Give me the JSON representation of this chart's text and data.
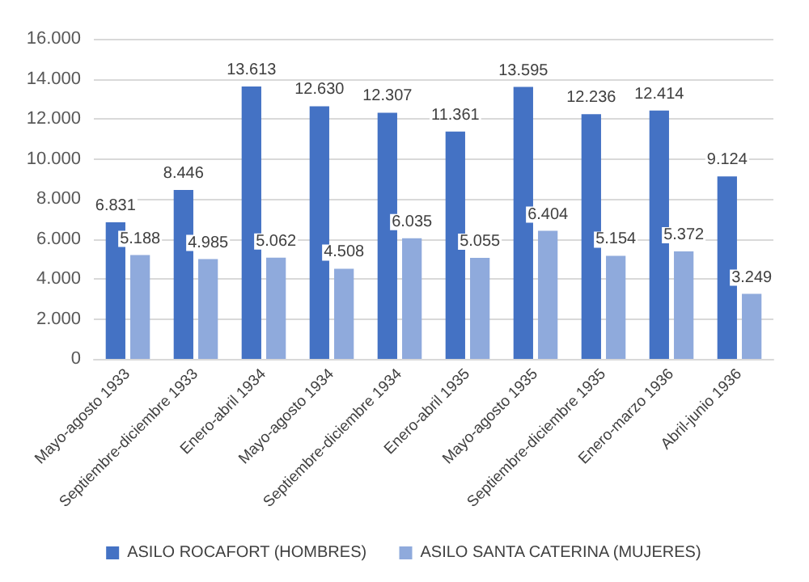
{
  "chart_data": {
    "type": "bar",
    "categories": [
      "Mayo-agosto 1933",
      "Septiembre-diciembre 1933",
      "Enero-abril 1934",
      "Mayo-agosto 1934",
      "Septiembre-diciembre 1934",
      "Enero-abril 1935",
      "Mayo-agosto 1935",
      "Septiembre-diciembre 1935",
      "Enero-marzo 1936",
      "Abril-junio 1936"
    ],
    "series": [
      {
        "name": "ASILO ROCAFORT (HOMBRES)",
        "color": "#4472c4",
        "values": [
          6831,
          8446,
          13613,
          12630,
          12307,
          11361,
          13595,
          12236,
          12414,
          9124
        ],
        "value_labels": [
          "6.831",
          "8.446",
          "13.613",
          "12.630",
          "12.307",
          "11.361",
          "13.595",
          "12.236",
          "12.414",
          "9.124"
        ]
      },
      {
        "name": "ASILO SANTA CATERINA (MUJERES)",
        "color": "#8faadc",
        "values": [
          5188,
          4985,
          5062,
          4508,
          6035,
          5055,
          6404,
          5154,
          5372,
          3249
        ],
        "value_labels": [
          "5.188",
          "4.985",
          "5.062",
          "4.508",
          "6.035",
          "5.055",
          "6.404",
          "5.154",
          "5.372",
          "3.249"
        ]
      }
    ],
    "ylim": [
      0,
      16000
    ],
    "yticks": [
      {
        "value": 0,
        "label": "0"
      },
      {
        "value": 2000,
        "label": "2.000"
      },
      {
        "value": 4000,
        "label": "4.000"
      },
      {
        "value": 6000,
        "label": "6.000"
      },
      {
        "value": 8000,
        "label": "8.000"
      },
      {
        "value": 10000,
        "label": "10.000"
      },
      {
        "value": 12000,
        "label": "12.000"
      },
      {
        "value": 14000,
        "label": "14.000"
      },
      {
        "value": 16000,
        "label": "16.000"
      }
    ],
    "grid": "y",
    "legend": "bottom"
  }
}
